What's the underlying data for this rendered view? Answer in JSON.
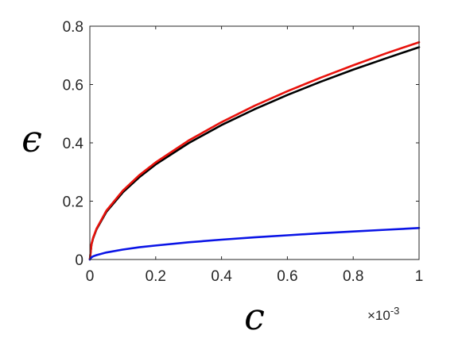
{
  "chart_data": {
    "type": "line",
    "title": "",
    "xlabel": "c",
    "ylabel": "ϵ",
    "x_exponent_label": "×10",
    "x_exponent_power": "-3",
    "xlim": [
      0,
      1
    ],
    "ylim": [
      0,
      0.8
    ],
    "x_ticks": [
      "0",
      "0.2",
      "0.4",
      "0.6",
      "0.8",
      "1"
    ],
    "y_ticks": [
      "0",
      "0.2",
      "0.4",
      "0.6",
      "0.8"
    ],
    "grid": false,
    "legend": "none",
    "x": [
      0,
      0.005,
      0.01,
      0.02,
      0.05,
      0.1,
      0.15,
      0.2,
      0.3,
      0.4,
      0.5,
      0.6,
      0.7,
      0.8,
      0.9,
      1.0
    ],
    "series": [
      {
        "color": "#000000",
        "values": [
          0,
          0.052,
          0.073,
          0.103,
          0.163,
          0.23,
          0.282,
          0.326,
          0.399,
          0.461,
          0.515,
          0.564,
          0.609,
          0.651,
          0.69,
          0.728
        ]
      },
      {
        "color": "#e8120c",
        "values": [
          0,
          0.053,
          0.075,
          0.105,
          0.167,
          0.236,
          0.289,
          0.333,
          0.408,
          0.471,
          0.527,
          0.577,
          0.623,
          0.666,
          0.707,
          0.745
        ]
      },
      {
        "color": "#0a14e6",
        "values": [
          0,
          0.0075,
          0.011,
          0.015,
          0.024,
          0.034,
          0.042,
          0.048,
          0.059,
          0.068,
          0.076,
          0.083,
          0.09,
          0.096,
          0.102,
          0.108
        ]
      }
    ]
  }
}
